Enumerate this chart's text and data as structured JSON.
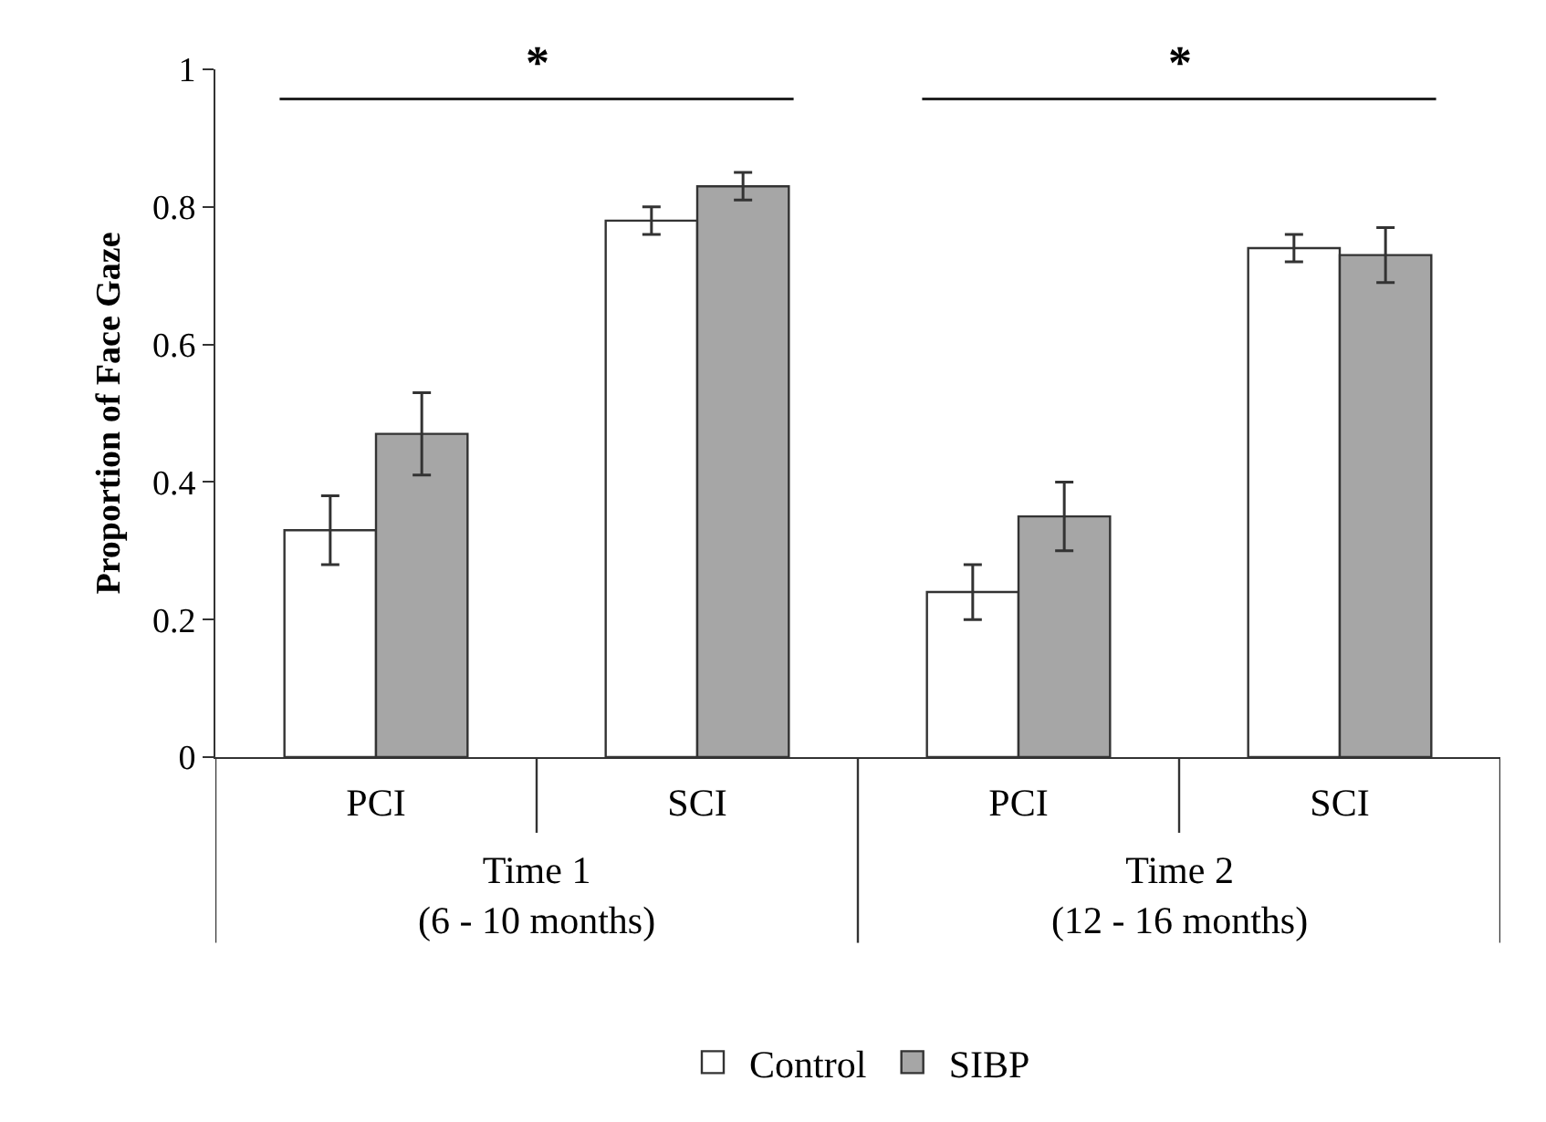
{
  "chart_data": {
    "type": "bar",
    "ylabel": "Proportion of Face Gaze",
    "categories": [
      "PCI",
      "SCI",
      "PCI",
      "SCI"
    ],
    "series": [
      {
        "name": "Control",
        "color": "#ffffff",
        "values": [
          0.33,
          0.78,
          0.24,
          0.74
        ],
        "errors": [
          0.05,
          0.02,
          0.04,
          0.02
        ]
      },
      {
        "name": "SIBP",
        "color": "#a6a6a6",
        "values": [
          0.47,
          0.83,
          0.35,
          0.73
        ],
        "errors": [
          0.06,
          0.02,
          0.05,
          0.04
        ]
      }
    ],
    "ylim": [
      0,
      1
    ],
    "yticks": [
      0,
      0.2,
      0.4,
      0.6,
      0.8,
      1
    ],
    "annotations": [
      "*",
      "*",
      "Time 1\n(6 - 10 months)",
      "Time 2\n(12 - 16 months)"
    ],
    "legend": "bottom"
  }
}
